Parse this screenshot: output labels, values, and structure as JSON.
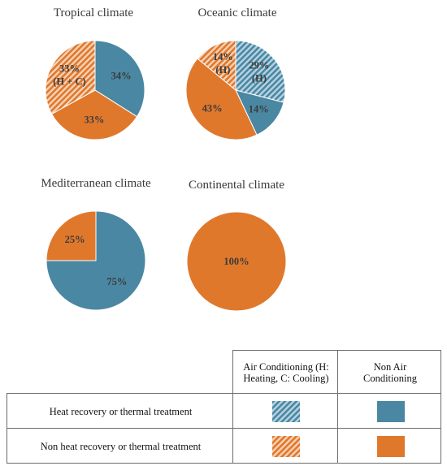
{
  "colors": {
    "blue": "#4a87a3",
    "orange": "#e0782c",
    "blue_hatch_light": "#b7d3e2",
    "orange_hatch_light": "#f6d2b6"
  },
  "chart_data": [
    {
      "type": "pie",
      "title": "Tropical climate",
      "slices": [
        {
          "value": 34,
          "label": "34%",
          "category": "Heat recovery or thermal treatment",
          "ac": "Non Air Conditioning"
        },
        {
          "value": 33,
          "label": "33%",
          "category": "Non heat recovery or thermal treatment",
          "ac": "Non Air Conditioning"
        },
        {
          "value": 33,
          "label": "33%\n(H + C)",
          "category": "Non heat recovery or thermal treatment",
          "ac": "Air Conditioning"
        }
      ]
    },
    {
      "type": "pie",
      "title": "Oceanic climate",
      "slices": [
        {
          "value": 29,
          "label": "29%\n(H)",
          "category": "Heat recovery or thermal treatment",
          "ac": "Air Conditioning"
        },
        {
          "value": 14,
          "label": "14%",
          "category": "Heat recovery or thermal treatment",
          "ac": "Non Air Conditioning"
        },
        {
          "value": 43,
          "label": "43%",
          "category": "Non heat recovery or thermal treatment",
          "ac": "Non Air Conditioning"
        },
        {
          "value": 14,
          "label": "14%\n(H)",
          "category": "Non heat recovery or thermal treatment",
          "ac": "Air Conditioning"
        }
      ]
    },
    {
      "type": "pie",
      "title": "Mediterranean climate",
      "slices": [
        {
          "value": 75,
          "label": "75%",
          "category": "Heat recovery or thermal treatment",
          "ac": "Non Air Conditioning"
        },
        {
          "value": 25,
          "label": "25%",
          "category": "Non heat recovery or thermal treatment",
          "ac": "Non Air Conditioning"
        }
      ]
    },
    {
      "type": "pie",
      "title": "Continental climate",
      "slices": [
        {
          "value": 100,
          "label": "100%",
          "category": "Non heat recovery or thermal treatment",
          "ac": "Non Air Conditioning"
        }
      ]
    }
  ],
  "legend": {
    "col_headers": [
      "Air Conditioning (H: Heating, C: Cooling)",
      "Non Air Conditioning"
    ],
    "rows": [
      {
        "label": "Heat recovery or thermal treatment",
        "color": "blue"
      },
      {
        "label": "Non heat recovery or thermal treatment",
        "color": "orange"
      }
    ]
  }
}
